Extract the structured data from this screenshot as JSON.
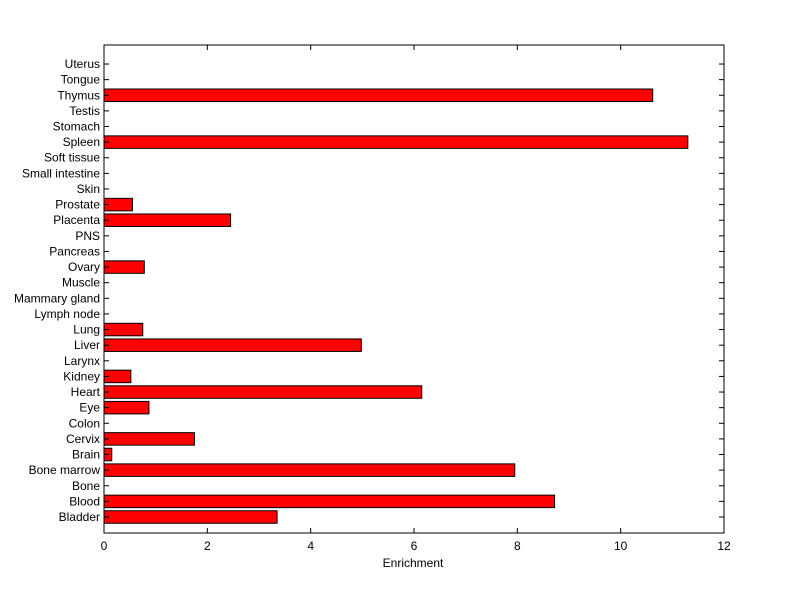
{
  "chart_data": {
    "type": "bar",
    "orientation": "horizontal",
    "title": "",
    "xlabel": "Enrichment",
    "ylabel": "",
    "xlim": [
      0,
      12
    ],
    "xticks": [
      "0",
      "2",
      "4",
      "6",
      "8",
      "10",
      "12"
    ],
    "grid": false,
    "bar_color": "#ff0000",
    "categories": [
      "Bladder",
      "Blood",
      "Bone",
      "Bone marrow",
      "Brain",
      "Cervix",
      "Colon",
      "Eye",
      "Heart",
      "Kidney",
      "Larynx",
      "Liver",
      "Lung",
      "Lymph node",
      "Mammary gland",
      "Muscle",
      "Ovary",
      "Pancreas",
      "PNS",
      "Placenta",
      "Prostate",
      "Skin",
      "Small intestine",
      "Soft tissue",
      "Spleen",
      "Stomach",
      "Testis",
      "Thymus",
      "Tongue",
      "Uterus"
    ],
    "values": [
      3.35,
      8.72,
      0,
      7.95,
      0.15,
      1.75,
      0,
      0.87,
      6.15,
      0.52,
      0,
      4.98,
      0.75,
      0,
      0,
      0,
      0.78,
      0,
      0,
      2.45,
      0.55,
      0,
      0,
      0,
      11.3,
      0,
      0,
      10.62,
      0,
      0
    ]
  }
}
